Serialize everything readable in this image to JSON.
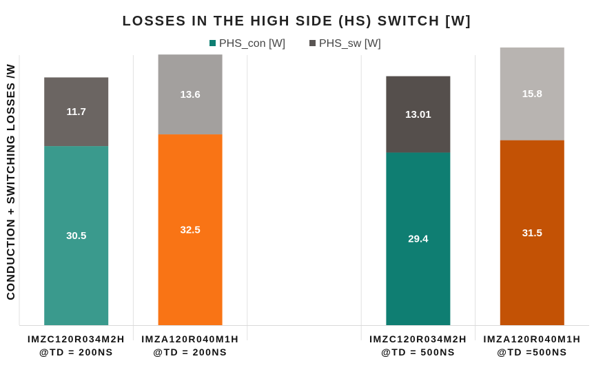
{
  "chart_data": {
    "type": "bar",
    "stacked": true,
    "title": "LOSSES IN THE HIGH SIDE (HS) SWITCH [W]",
    "ylabel": "CONDUCTION + SWITCHING LOSSES /W",
    "xlabel": "",
    "ylim": [
      0,
      46
    ],
    "grid": "vertical-separators",
    "legend_position": "top",
    "categories": [
      [
        "IMZC120R034M2H",
        "@TD = 200NS"
      ],
      [
        "IMZA120R040M1H",
        "@TD = 200NS"
      ],
      [
        "",
        ""
      ],
      [
        "IMZC120R034M2H",
        "@TD = 500NS"
      ],
      [
        "IMZA120R040M1H",
        "@TD =500NS"
      ]
    ],
    "series": [
      {
        "name": "PHS_con [W]",
        "values": [
          30.5,
          32.5,
          null,
          29.4,
          31.5
        ],
        "labels": [
          "30.5",
          "32.5",
          "",
          "29.4",
          "31.5"
        ],
        "colors": [
          "#3a9a8d",
          "#f97415",
          "",
          "#0f7e72",
          "#c35205"
        ],
        "legend_color": "#0f7e72"
      },
      {
        "name": "PHS_sw [W]",
        "values": [
          11.7,
          13.6,
          null,
          13.01,
          15.8
        ],
        "labels": [
          "11.7",
          "13.6",
          "",
          "13.01",
          "15.8"
        ],
        "colors": [
          "#6b6562",
          "#a3a09e",
          "",
          "#554f4c",
          "#b8b4b1"
        ],
        "legend_color": "#5a5553"
      }
    ]
  }
}
